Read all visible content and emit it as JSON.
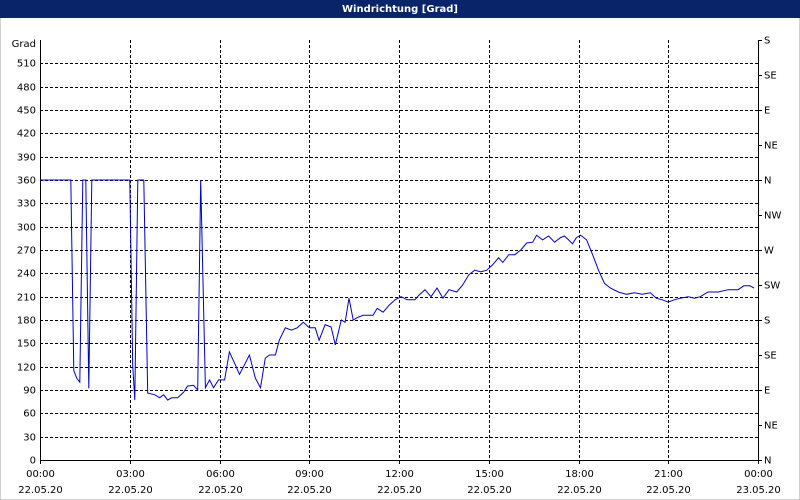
{
  "chart_data": {
    "type": "line",
    "title": "Windrichtung [Grad]",
    "ylabel": "Grad",
    "color": "#0000c8",
    "grid": true,
    "xlim": [
      0,
      24
    ],
    "xticks": [
      {
        "value": 0,
        "label": "00:00"
      },
      {
        "value": 3,
        "label": "03:00"
      },
      {
        "value": 6,
        "label": "06:00"
      },
      {
        "value": 9,
        "label": "09:00"
      },
      {
        "value": 12,
        "label": "12:00"
      },
      {
        "value": 15,
        "label": "15:00"
      },
      {
        "value": 18,
        "label": "18:00"
      },
      {
        "value": 21,
        "label": "21:00"
      },
      {
        "value": 24,
        "label": "00:00"
      }
    ],
    "xtick_dates": [
      "22.05.20",
      "22.05.20",
      "22.05.20",
      "22.05.20",
      "22.05.20",
      "22.05.20",
      "22.05.20",
      "22.05.20",
      "23.05.20"
    ],
    "ylim": [
      0,
      540
    ],
    "yticks": [
      0,
      30,
      60,
      90,
      120,
      150,
      180,
      210,
      240,
      270,
      300,
      330,
      360,
      390,
      420,
      450,
      480,
      510
    ],
    "y2lim": [
      0,
      540
    ],
    "y2ticks": [
      {
        "value": 0,
        "label": "N"
      },
      {
        "value": 45,
        "label": "NE"
      },
      {
        "value": 90,
        "label": "E"
      },
      {
        "value": 135,
        "label": "SE"
      },
      {
        "value": 180,
        "label": "S"
      },
      {
        "value": 225,
        "label": "SW"
      },
      {
        "value": 270,
        "label": "W"
      },
      {
        "value": 315,
        "label": "NW"
      },
      {
        "value": 360,
        "label": "N"
      },
      {
        "value": 405,
        "label": "NE"
      },
      {
        "value": 450,
        "label": "E"
      },
      {
        "value": 495,
        "label": "SE"
      },
      {
        "value": 540,
        "label": "S"
      }
    ],
    "x": [
      0,
      1.03,
      1.13,
      1.23,
      1.33,
      1.43,
      1.53,
      1.63,
      1.73,
      1.83,
      3.0,
      3.1,
      3.17,
      3.27,
      3.47,
      3.6,
      3.83,
      4.0,
      4.13,
      4.27,
      4.4,
      4.6,
      4.8,
      4.93,
      5.13,
      5.27,
      5.37,
      5.53,
      5.67,
      5.8,
      5.97,
      6.17,
      6.33,
      6.53,
      6.67,
      6.87,
      7.0,
      7.2,
      7.37,
      7.53,
      7.67,
      7.87,
      8.0,
      8.2,
      8.4,
      8.6,
      8.8,
      9.0,
      9.2,
      9.33,
      9.53,
      9.73,
      9.87,
      10.07,
      10.2,
      10.33,
      10.47,
      10.6,
      10.8,
      11.13,
      11.27,
      11.47,
      11.67,
      11.87,
      12.07,
      12.27,
      12.53,
      12.67,
      12.87,
      13.07,
      13.27,
      13.47,
      13.67,
      13.93,
      14.13,
      14.33,
      14.53,
      14.73,
      14.93,
      15.13,
      15.33,
      15.47,
      15.67,
      15.87,
      16.07,
      16.27,
      16.47,
      16.6,
      16.8,
      17.0,
      17.2,
      17.4,
      17.53,
      17.67,
      17.8,
      17.93,
      18.07,
      18.27,
      18.47,
      18.67,
      18.87,
      19.07,
      19.33,
      19.6,
      19.87,
      20.13,
      20.4,
      20.6,
      20.8,
      21.0,
      21.2,
      21.4,
      21.67,
      21.87,
      22.07,
      22.33,
      22.67,
      23.0,
      23.33,
      23.53,
      23.73,
      23.87
    ],
    "values": [
      360,
      360,
      115,
      105,
      100,
      360,
      360,
      92,
      360,
      360,
      360,
      122,
      77,
      360,
      360,
      86,
      84,
      80,
      84,
      77,
      80,
      80,
      87,
      95,
      96,
      90,
      360,
      93,
      103,
      93,
      103,
      103,
      139,
      122,
      110,
      125,
      135,
      105,
      93,
      131,
      135,
      135,
      154,
      170,
      167,
      170,
      177,
      170,
      170,
      154,
      174,
      171,
      148,
      180,
      177,
      208,
      180,
      183,
      186,
      186,
      195,
      190,
      199,
      206,
      210,
      206,
      206,
      212,
      219,
      210,
      221,
      208,
      219,
      216,
      225,
      238,
      244,
      242,
      244,
      251,
      260,
      254,
      264,
      264,
      270,
      279,
      280,
      289,
      283,
      288,
      280,
      286,
      288,
      283,
      278,
      286,
      289,
      283,
      264,
      244,
      227,
      221,
      216,
      213,
      215,
      213,
      215,
      208,
      206,
      203,
      206,
      208,
      210,
      208,
      210,
      216,
      216,
      219,
      219,
      224,
      224,
      221
    ]
  }
}
